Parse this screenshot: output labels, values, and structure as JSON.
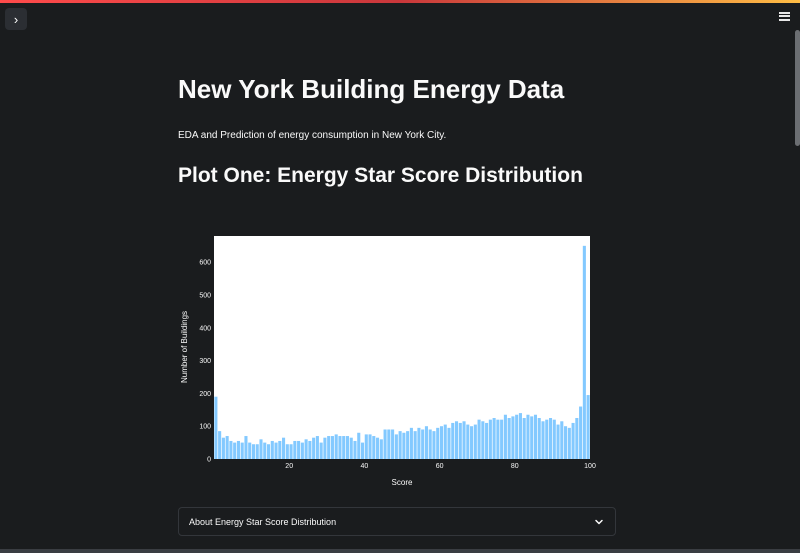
{
  "header": {
    "sidebar_toggle_icon": "›",
    "menu_icon": "hamburger-menu-icon"
  },
  "main": {
    "title": "New York Building Energy Data",
    "description": "EDA and Prediction of energy consumption in New York City.",
    "plot_heading": "Plot One: Energy Star Score Distribution"
  },
  "expander": {
    "label": "About Energy Star Score Distribution",
    "icon": "chevron-down-icon"
  },
  "colors": {
    "background": "#1a1c1e",
    "bar": "#83c9ff",
    "plot_bg": "#ffffff",
    "accent": "#ff4b4b"
  },
  "chart_data": {
    "type": "bar",
    "title": "",
    "xlabel": "Score",
    "ylabel": "Number of Buildings",
    "xlim": [
      0,
      100
    ],
    "ylim": [
      0,
      680
    ],
    "xticks": [
      20,
      40,
      60,
      80,
      100
    ],
    "yticks": [
      0,
      100,
      200,
      300,
      400,
      500,
      600
    ],
    "x": [
      1,
      2,
      3,
      4,
      5,
      6,
      7,
      8,
      9,
      10,
      11,
      12,
      13,
      14,
      15,
      16,
      17,
      18,
      19,
      20,
      21,
      22,
      23,
      24,
      25,
      26,
      27,
      28,
      29,
      30,
      31,
      32,
      33,
      34,
      35,
      36,
      37,
      38,
      39,
      40,
      41,
      42,
      43,
      44,
      45,
      46,
      47,
      48,
      49,
      50,
      51,
      52,
      53,
      54,
      55,
      56,
      57,
      58,
      59,
      60,
      61,
      62,
      63,
      64,
      65,
      66,
      67,
      68,
      69,
      70,
      71,
      72,
      73,
      74,
      75,
      76,
      77,
      78,
      79,
      80,
      81,
      82,
      83,
      84,
      85,
      86,
      87,
      88,
      89,
      90,
      91,
      92,
      93,
      94,
      95,
      96,
      97,
      98,
      99,
      100
    ],
    "values": [
      190,
      85,
      65,
      70,
      55,
      50,
      55,
      50,
      70,
      50,
      45,
      45,
      60,
      50,
      45,
      55,
      50,
      55,
      65,
      45,
      45,
      55,
      55,
      50,
      60,
      55,
      65,
      70,
      50,
      65,
      70,
      70,
      75,
      70,
      70,
      70,
      65,
      55,
      80,
      50,
      75,
      75,
      70,
      65,
      60,
      90,
      90,
      90,
      75,
      85,
      80,
      85,
      95,
      85,
      95,
      90,
      100,
      90,
      85,
      95,
      100,
      105,
      95,
      110,
      115,
      110,
      115,
      105,
      100,
      105,
      120,
      115,
      110,
      120,
      125,
      120,
      120,
      135,
      125,
      130,
      135,
      140,
      125,
      135,
      130,
      135,
      125,
      115,
      120,
      125,
      120,
      105,
      115,
      100,
      95,
      110,
      125,
      160,
      650,
      195
    ]
  }
}
